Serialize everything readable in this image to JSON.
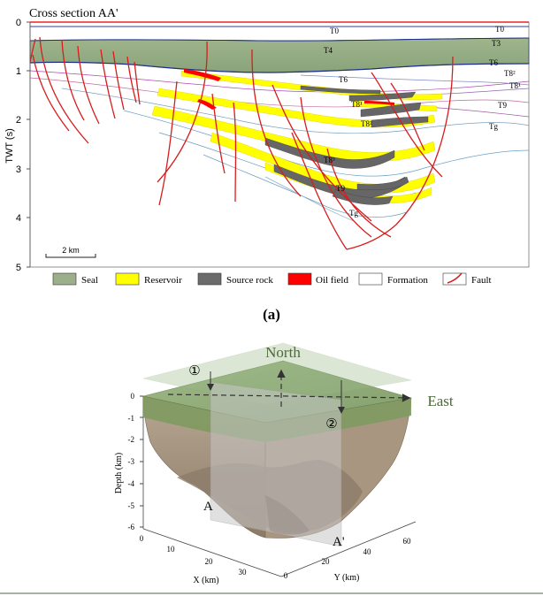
{
  "panel_a": {
    "title": "Cross section AA'",
    "y_axis": {
      "label": "TWT (s)",
      "ticks": [
        "0",
        "1",
        "2",
        "3",
        "4",
        "5"
      ]
    },
    "scale_bar": "2 km",
    "horizon_labels": {
      "t0_center": "T0",
      "t0_right": "T0",
      "t4_left": "T4",
      "t3_right": "T3",
      "t6_center": "T6",
      "t6_right": "T6",
      "t8_2_right": "T8²",
      "t8_1_right": "T8¹",
      "t9_right": "T9",
      "tg_right": "Tg",
      "t8_1_basin": "T8¹",
      "t8_2_basin": "T8²",
      "t8_3_basin": "T8³",
      "t9_basin": "T9",
      "tg_basin": "Tg"
    },
    "legend": [
      {
        "label": "Seal",
        "color": "#9bb08a"
      },
      {
        "label": "Reservoir",
        "color": "#ffff00"
      },
      {
        "label": "Source rock",
        "color": "#6b6b6b"
      },
      {
        "label": "Oil field",
        "color": "#ff0000"
      },
      {
        "label": "Formation",
        "color": "#ffffff"
      },
      {
        "label": "Fault",
        "color": "#d62020"
      }
    ],
    "caption": "(a)"
  },
  "panel_b": {
    "north_label": "North",
    "east_label": "East",
    "marker_1": "①",
    "marker_2": "②",
    "section_a": "A",
    "section_a_prime": "A'",
    "depth_axis": {
      "label": "Depth (km)",
      "ticks": [
        "0",
        "-1",
        "-2",
        "-3",
        "-4",
        "-5",
        "-6"
      ]
    },
    "x_axis": {
      "label": "X (km)",
      "ticks": [
        "0",
        "10",
        "20",
        "30"
      ]
    },
    "y_axis": {
      "label": "Y (km)",
      "ticks": [
        "0",
        "20",
        "40",
        "60"
      ]
    },
    "colors": {
      "seal": "#7c9a5e",
      "formation": "#a08f7c",
      "section_plane": "#bdbdbd",
      "north_text": "#4d6a36",
      "east_text": "#4d6a36"
    }
  }
}
